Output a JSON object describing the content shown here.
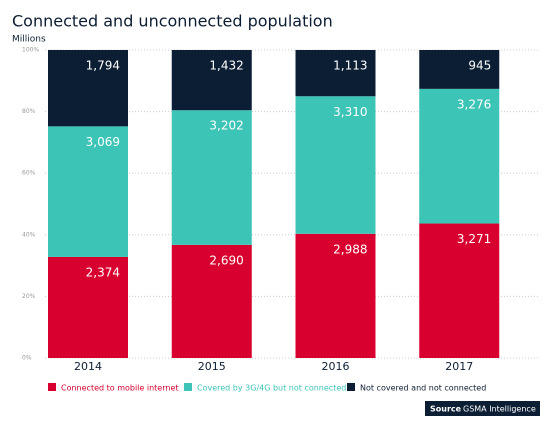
{
  "chart_data": {
    "type": "stacked_percent_bar",
    "title": "Connected and unconnected population",
    "subtitle": "Millions",
    "categories": [
      "2014",
      "2015",
      "2016",
      "2017"
    ],
    "series": [
      {
        "name": "Connected to mobile internet",
        "color": "#d7002e",
        "values": [
          2374,
          2690,
          2988,
          3271
        ],
        "value_labels": [
          "2,374",
          "2,690",
          "2,988",
          "3,271"
        ]
      },
      {
        "name": "Covered by 3G/4G but not connected",
        "color": "#3cc4b7",
        "values": [
          3069,
          3202,
          3310,
          3276
        ],
        "value_labels": [
          "3,069",
          "3,202",
          "3,310",
          "3,276"
        ]
      },
      {
        "name": "Not covered and not connected",
        "color": "#0c1e33",
        "values": [
          1794,
          1432,
          1113,
          945
        ],
        "value_labels": [
          "1,794",
          "1,432",
          "1,113",
          "945"
        ]
      }
    ],
    "ylim": [
      0,
      100
    ],
    "yticks": [
      {
        "value": 0,
        "label": "0%"
      },
      {
        "value": 20,
        "label": "20%"
      },
      {
        "value": 40,
        "label": "40%"
      },
      {
        "value": 60,
        "label": "60%"
      },
      {
        "value": 80,
        "label": "80%"
      },
      {
        "value": 100,
        "label": "100%"
      }
    ],
    "grid": true,
    "legend": "bottom",
    "source_label": "Source",
    "source": "GSMA Intelligence"
  }
}
